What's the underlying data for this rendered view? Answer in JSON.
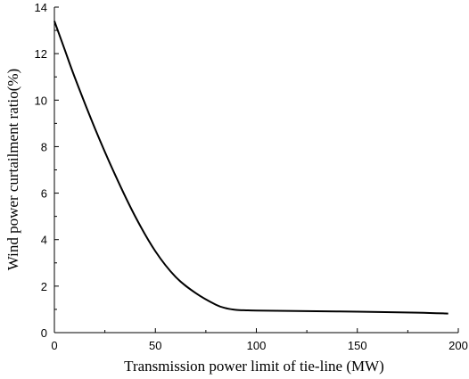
{
  "chart_data": {
    "type": "line",
    "title": "",
    "xlabel": "Transmission power limit  of tie-line  (MW)",
    "ylabel": "Wind power curtailment ratio(%)",
    "xlim": [
      0,
      200
    ],
    "ylim": [
      0,
      14
    ],
    "xticks": [
      0,
      50,
      100,
      150,
      200
    ],
    "yticks": [
      0,
      2,
      4,
      6,
      8,
      10,
      12,
      14
    ],
    "grid": false,
    "legend": "none",
    "series": [
      {
        "color": "#000000",
        "x": [
          0,
          5,
          10,
          20,
          30,
          40,
          50,
          60,
          70,
          80,
          85,
          90,
          95,
          100,
          120,
          150,
          180,
          195
        ],
        "y": [
          13.4,
          12.2,
          11.0,
          8.8,
          6.8,
          5.0,
          3.5,
          2.4,
          1.7,
          1.2,
          1.05,
          0.98,
          0.96,
          0.95,
          0.93,
          0.9,
          0.86,
          0.82
        ]
      }
    ]
  }
}
